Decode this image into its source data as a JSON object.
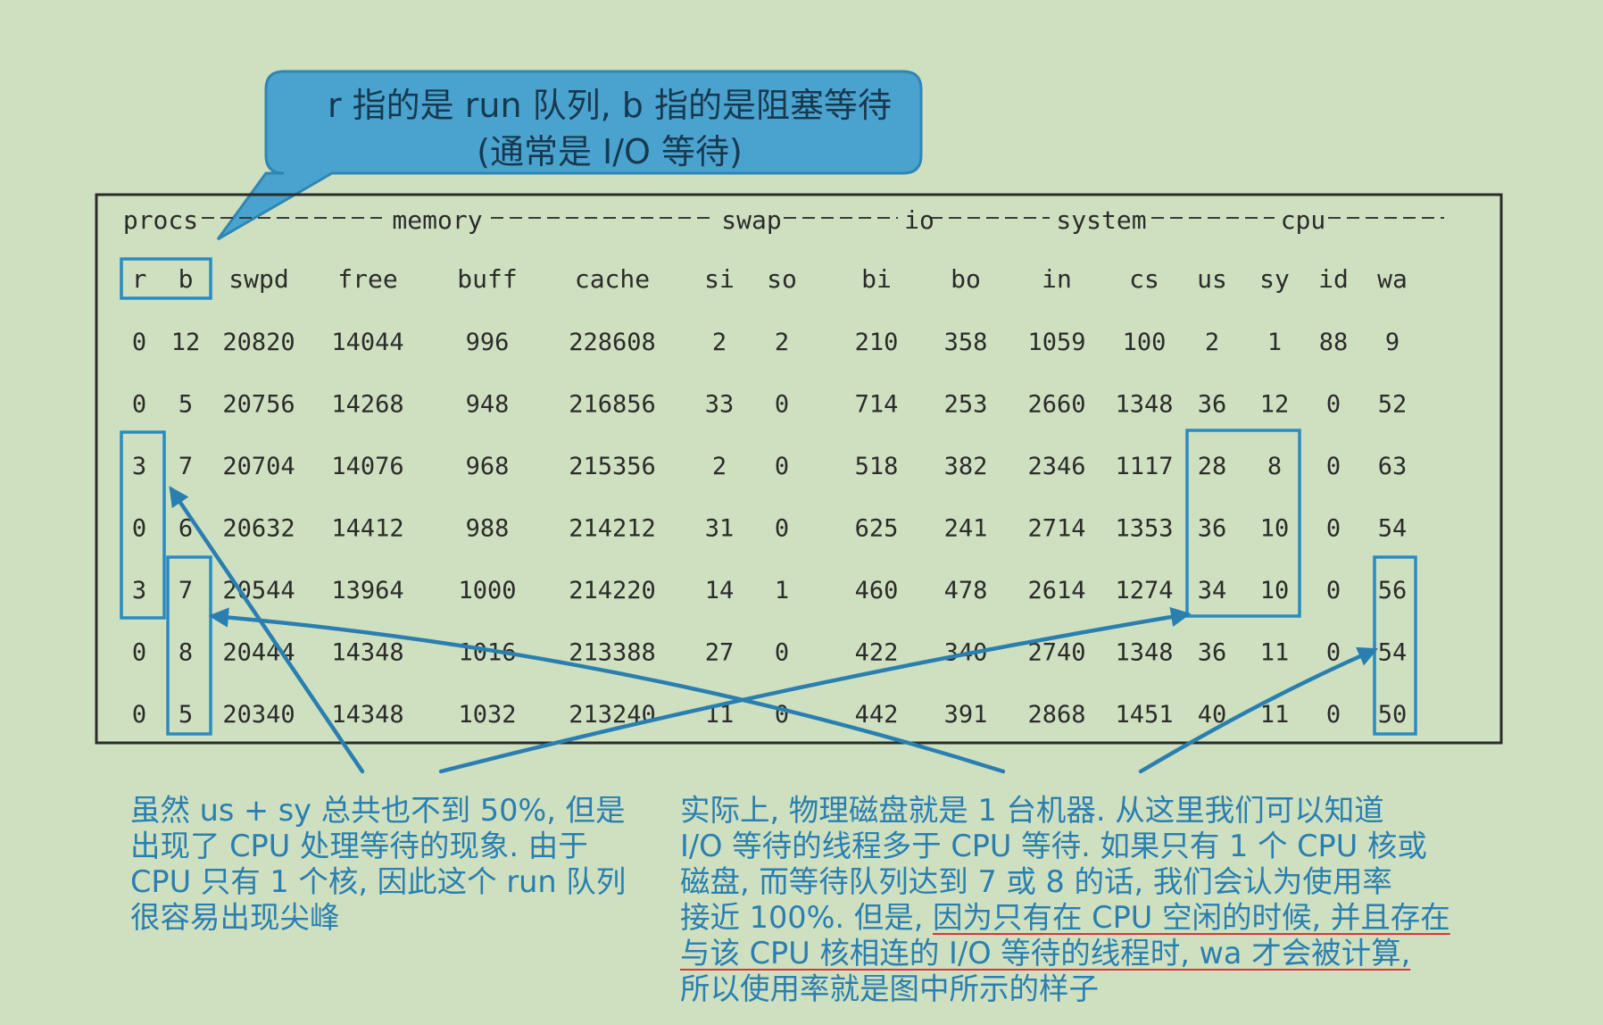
{
  "colors": {
    "background": "#cfe0c0",
    "bubble": "#4aa3cf",
    "annotation": "#2a7fb0",
    "ink": "#2b2b2b",
    "underline": "#e0323a"
  },
  "bubble": {
    "line1": "r 指的是 run 队列, b 指的是阻塞等待",
    "line2": "(通常是 I/O 等待)"
  },
  "table": {
    "groups": [
      "procs",
      "memory",
      "swap",
      "io",
      "system",
      "cpu"
    ],
    "columns": [
      "r",
      "b",
      "swpd",
      "free",
      "buff",
      "cache",
      "si",
      "so",
      "bi",
      "bo",
      "in",
      "cs",
      "us",
      "sy",
      "id",
      "wa"
    ],
    "rows": [
      [
        "0",
        "12",
        "20820",
        "14044",
        "996",
        "228608",
        "2",
        "2",
        "210",
        "358",
        "1059",
        "100",
        "2",
        "1",
        "88",
        "9"
      ],
      [
        "0",
        "5",
        "20756",
        "14268",
        "948",
        "216856",
        "33",
        "0",
        "714",
        "253",
        "2660",
        "1348",
        "36",
        "12",
        "0",
        "52"
      ],
      [
        "3",
        "7",
        "20704",
        "14076",
        "968",
        "215356",
        "2",
        "0",
        "518",
        "382",
        "2346",
        "1117",
        "28",
        "8",
        "0",
        "63"
      ],
      [
        "0",
        "6",
        "20632",
        "14412",
        "988",
        "214212",
        "31",
        "0",
        "625",
        "241",
        "2714",
        "1353",
        "36",
        "10",
        "0",
        "54"
      ],
      [
        "3",
        "7",
        "20544",
        "13964",
        "1000",
        "214220",
        "14",
        "1",
        "460",
        "478",
        "2614",
        "1274",
        "34",
        "10",
        "0",
        "56"
      ],
      [
        "0",
        "8",
        "20444",
        "14348",
        "1016",
        "213388",
        "27",
        "0",
        "422",
        "340",
        "2740",
        "1348",
        "36",
        "11",
        "0",
        "54"
      ],
      [
        "0",
        "5",
        "20340",
        "14348",
        "1032",
        "213240",
        "11",
        "0",
        "442",
        "391",
        "2868",
        "1451",
        "40",
        "11",
        "0",
        "50"
      ]
    ]
  },
  "notes": {
    "left": [
      "虽然 us + sy 总共也不到 50%, 但是",
      "出现了 CPU 处理等待的现象. 由于",
      "CPU 只有 1 个核, 因此这个 run 队列",
      "很容易出现尖峰"
    ],
    "right": {
      "line1": "实际上, 物理磁盘就是 1 台机器. 从这里我们可以知道",
      "line2": "I/O 等待的线程多于 CPU 等待. 如果只有 1 个 CPU 核或",
      "line3": "磁盘, 而等待队列达到 7 或 8 的话, 我们会认为使用率",
      "line4_plain": "接近 100%. 但是, ",
      "line4_underlined": "因为只有在 CPU 空闲的时候, 并且存在",
      "line5_underlined": "与该 CPU 核相连的 I/O 等待的线程时, wa 才会被计算,",
      "line6": "所以使用率就是图中所示的样子"
    }
  }
}
